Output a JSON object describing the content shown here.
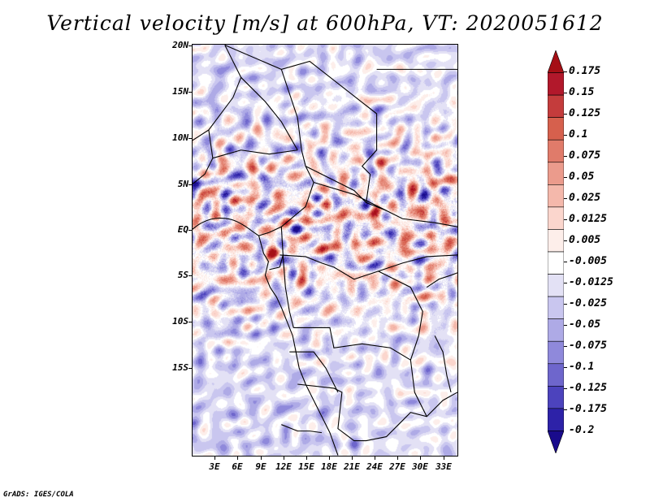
{
  "title": "Vertical velocity [m/s] at 600hPa, VT: 2020051612",
  "map": {
    "lat_labels": [
      "20N",
      "15N",
      "10N",
      "5N",
      "EQ",
      "5S",
      "10S",
      "15S"
    ],
    "lon_labels": [
      "3E",
      "6E",
      "9E",
      "12E",
      "15E",
      "18E",
      "21E",
      "24E",
      "27E",
      "30E",
      "33E"
    ]
  },
  "colorbar": {
    "labels": [
      "0.175",
      "0.15",
      "0.125",
      "0.1",
      "0.075",
      "0.05",
      "0.025",
      "0.0125",
      "0.005",
      "-0.005",
      "-0.0125",
      "-0.025",
      "-0.05",
      "-0.075",
      "-0.1",
      "-0.125",
      "-0.175",
      "-0.2"
    ],
    "colors": [
      "#a50f15",
      "#b2182b",
      "#c43c3c",
      "#d6604d",
      "#e07b6a",
      "#eb9b8c",
      "#f4b8ab",
      "#fbd6cd",
      "#fdeeea",
      "#ffffff",
      "#e3e1f5",
      "#c9c6ef",
      "#aeaae6",
      "#8f89db",
      "#6e66cc",
      "#4c43bd",
      "#2d22a8",
      "#190b8c"
    ]
  },
  "footer": "GrADS: IGES/COLA"
}
